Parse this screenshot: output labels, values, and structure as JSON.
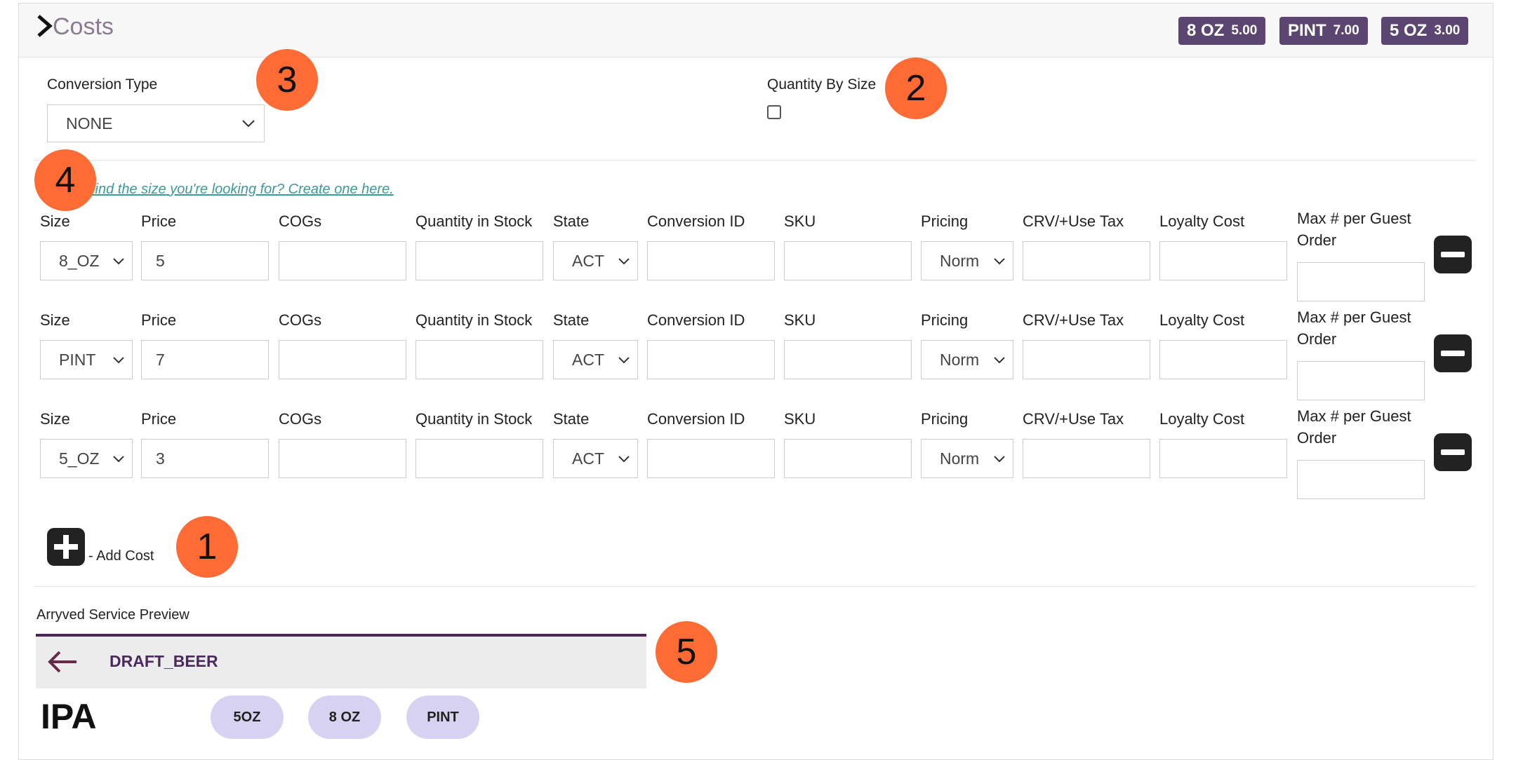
{
  "header": {
    "title": "Costs",
    "badges": [
      {
        "size": "8 OZ",
        "price": "5.00"
      },
      {
        "size": "PINT",
        "price": "7.00"
      },
      {
        "size": "5 OZ",
        "price": "3.00"
      }
    ]
  },
  "conversion": {
    "label": "Conversion Type",
    "value": "NONE"
  },
  "quantity_by_size": {
    "label": "Quantity By Size",
    "checked": false
  },
  "helper_link": "find the size you're looking for? Create one here.",
  "columns": {
    "size": "Size",
    "price": "Price",
    "cogs": "COGs",
    "qty": "Quantity in Stock",
    "state": "State",
    "conversion_id": "Conversion ID",
    "sku": "SKU",
    "pricing": "Pricing",
    "crv": "CRV/+Use Tax",
    "loyalty": "Loyalty Cost",
    "max": "Max # per Guest Order"
  },
  "rows": [
    {
      "size": "8_OZ",
      "price": "5",
      "state": "ACT",
      "pricing": "Norm"
    },
    {
      "size": "PINT",
      "price": "7",
      "state": "ACT",
      "pricing": "Norm"
    },
    {
      "size": "5_OZ",
      "price": "3",
      "state": "ACT",
      "pricing": "Norm"
    }
  ],
  "add_cost_label": "- Add Cost",
  "preview": {
    "title": "Arryved Service Preview",
    "category": "DRAFT_BEER",
    "item_name": "IPA",
    "sizes": [
      "5OZ",
      "8 OZ",
      "PINT"
    ]
  },
  "callouts": [
    "1",
    "2",
    "3",
    "4",
    "5"
  ],
  "colors": {
    "badge_bg": "#5a4670",
    "callout": "#ff6b35",
    "link": "#3b9a9a",
    "pill": "#d8d2f2",
    "preview_accent": "#4a2a55"
  }
}
